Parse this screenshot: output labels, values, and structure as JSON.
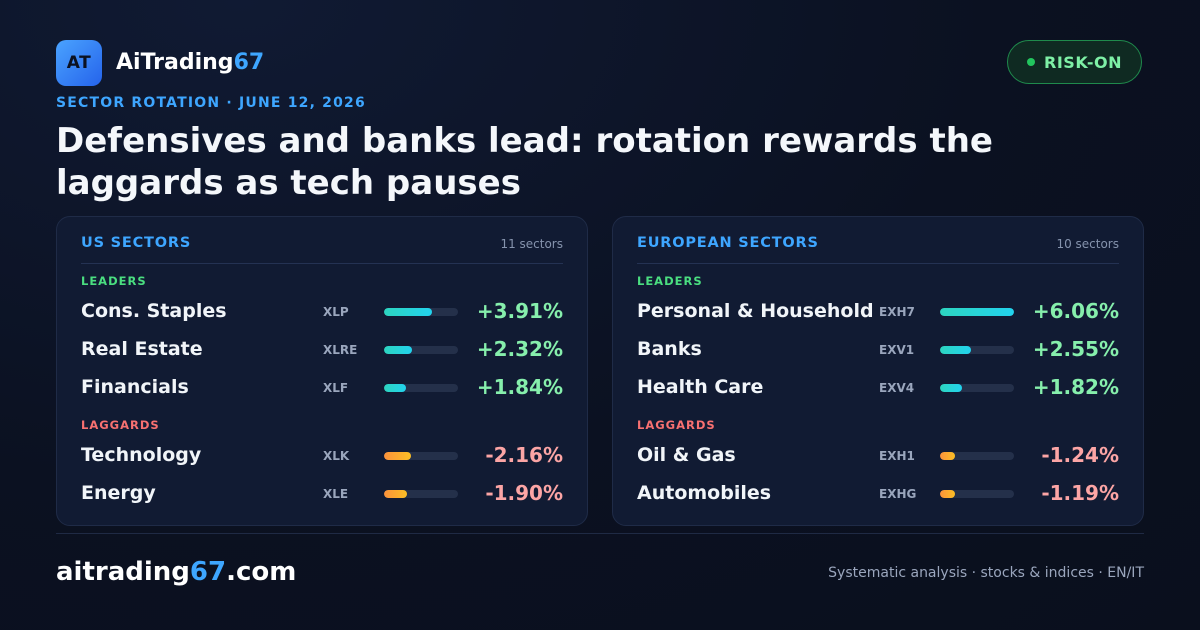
{
  "brand": {
    "logo_text": "AT",
    "name_main": "AiTrading",
    "name_accent": "67"
  },
  "badge": {
    "label": "RISK-ON",
    "color": "#22c55e"
  },
  "kicker": "SECTOR ROTATION · JUNE 12, 2026",
  "headline": "Defensives and banks lead: rotation rewards the laggards as tech pauses",
  "labels": {
    "leaders": "LEADERS",
    "laggards": "LAGGARDS"
  },
  "panels": [
    {
      "title": "US SECTORS",
      "count": "11 sectors",
      "leaders": [
        {
          "name": "Cons. Staples",
          "ticker": "XLP",
          "pct": "+3.91%",
          "strength": 0.65
        },
        {
          "name": "Real Estate",
          "ticker": "XLRE",
          "pct": "+2.32%",
          "strength": 0.38
        },
        {
          "name": "Financials",
          "ticker": "XLF",
          "pct": "+1.84%",
          "strength": 0.3
        }
      ],
      "laggards": [
        {
          "name": "Technology",
          "ticker": "XLK",
          "pct": "-2.16%",
          "strength": 0.36
        },
        {
          "name": "Energy",
          "ticker": "XLE",
          "pct": "-1.90%",
          "strength": 0.31
        }
      ]
    },
    {
      "title": "EUROPEAN SECTORS",
      "count": "10 sectors",
      "leaders": [
        {
          "name": "Personal & Household",
          "ticker": "EXH7",
          "pct": "+6.06%",
          "strength": 1.0
        },
        {
          "name": "Banks",
          "ticker": "EXV1",
          "pct": "+2.55%",
          "strength": 0.42
        },
        {
          "name": "Health Care",
          "ticker": "EXV4",
          "pct": "+1.82%",
          "strength": 0.3
        }
      ],
      "laggards": [
        {
          "name": "Oil & Gas",
          "ticker": "EXH1",
          "pct": "-1.24%",
          "strength": 0.2
        },
        {
          "name": "Automobiles",
          "ticker": "EXHG",
          "pct": "-1.19%",
          "strength": 0.2
        }
      ]
    }
  ],
  "footer": {
    "domain_main": "aitrading",
    "domain_accent": "67",
    "domain_tld": ".com",
    "tagline": "Systematic analysis · stocks & indices · EN/IT"
  }
}
